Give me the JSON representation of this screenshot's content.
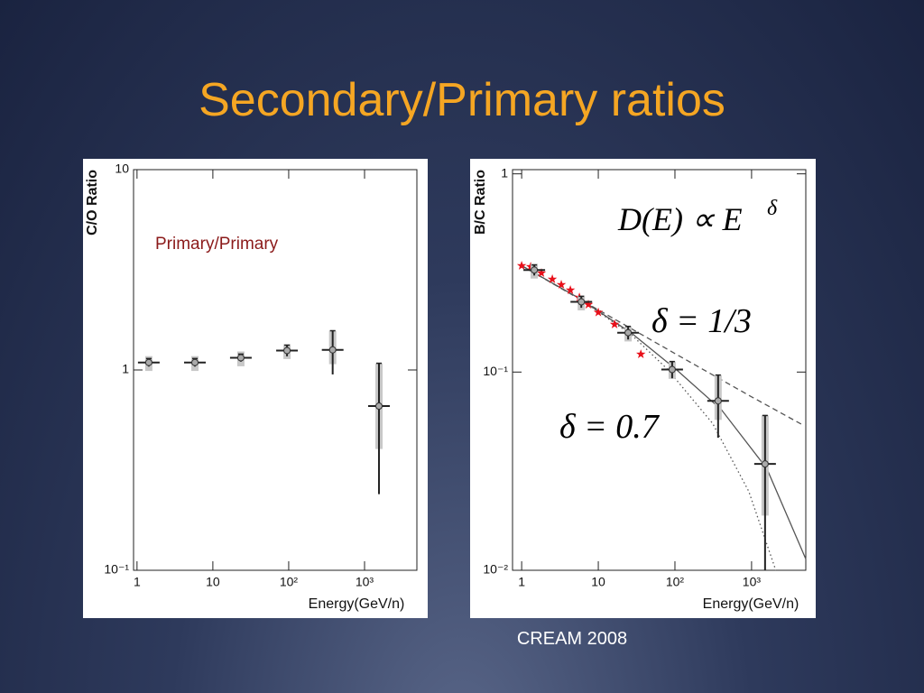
{
  "title": "Secondary/Primary ratios",
  "caption": "CREAM 2008",
  "chart_data": [
    {
      "type": "scatter",
      "xlabel": "Energy(GeV/n)",
      "ylabel": "C/O Ratio",
      "annotations": [
        "Primary/Primary"
      ],
      "logx": true,
      "logy": true,
      "xlim": [
        0.9,
        4900
      ],
      "ylim": [
        0.1,
        10
      ],
      "xticks": [
        1,
        10,
        {
          "value": 100,
          "label": "10²"
        },
        {
          "value": 1000,
          "label": "10³"
        }
      ],
      "yticks": [
        {
          "value": 0.1,
          "label": "10⁻¹"
        },
        1,
        10
      ],
      "series": [
        {
          "style": "errorbar",
          "color": "#222222",
          "x": [
            1.43,
            5.8,
            23.4,
            95,
            380,
            1550
          ],
          "values": [
            1.09,
            1.09,
            1.15,
            1.25,
            1.26,
            0.66
          ],
          "yerr": [
            0.05,
            0.05,
            0.05,
            0.08,
            0.31,
            0.42
          ]
        }
      ]
    },
    {
      "type": "scatter",
      "xlabel": "Energy(GeV/n)",
      "ylabel": "B/C Ratio",
      "annotations": [
        "D(E) ∝ E",
        "δ",
        "δ = 1/3",
        "δ = 0.7"
      ],
      "logx": true,
      "logy": true,
      "xlim": [
        0.76,
        5100
      ],
      "ylim": [
        0.01,
        1.05
      ],
      "xticks": [
        1,
        10,
        {
          "value": 100,
          "label": "10²"
        },
        {
          "value": 1000,
          "label": "10³"
        }
      ],
      "yticks": [
        {
          "value": 0.01,
          "label": "10⁻²"
        },
        {
          "value": 0.1,
          "label": "10⁻¹"
        },
        1
      ],
      "series": [
        {
          "style": "dashed",
          "color": "#555555",
          "x": [
            1,
            10,
            100,
            1000,
            4700
          ],
          "values": [
            0.344,
            0.206,
            0.124,
            0.075,
            0.054
          ]
        },
        {
          "style": "solid",
          "color": "#555555",
          "x": [
            1,
            5.37,
            27.2,
            104,
            405,
            1580,
            5100
          ],
          "values": [
            0.344,
            0.238,
            0.157,
            0.103,
            0.0645,
            0.0326,
            0.0114
          ]
        },
        {
          "style": "dotted",
          "color": "#555555",
          "x": [
            1,
            5.37,
            27.2,
            80.6,
            311,
            920,
            2070
          ],
          "values": [
            0.344,
            0.238,
            0.154,
            0.103,
            0.055,
            0.025,
            0.01
          ]
        },
        {
          "style": "star",
          "color": "#e8101a",
          "x": [
            1.0,
            1.31,
            1.81,
            2.51,
            3.29,
            4.32,
            5.66,
            7.42,
            10.0,
            16.3,
            35.9
          ],
          "values": [
            0.344,
            0.34,
            0.316,
            0.294,
            0.276,
            0.259,
            0.238,
            0.219,
            0.2,
            0.174,
            0.123
          ]
        },
        {
          "style": "errorbar",
          "color": "#222222",
          "x": [
            1.46,
            6.0,
            24.5,
            92,
            366,
            1500
          ],
          "values": [
            0.327,
            0.226,
            0.158,
            0.103,
            0.0716,
            0.0344
          ],
          "yerr": [
            0.02,
            0.015,
            0.012,
            0.01,
            0.025,
            0.026
          ]
        }
      ]
    }
  ]
}
